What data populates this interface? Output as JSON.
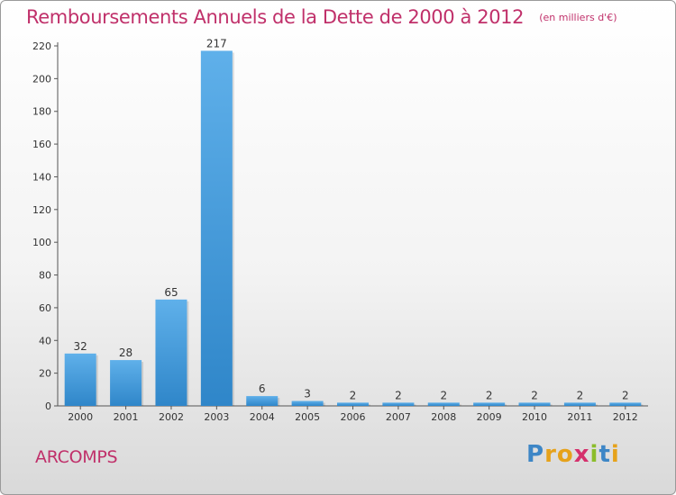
{
  "header": {
    "title": "Remboursements Annuels de la Dette de 2000 à 2012",
    "unit": "(en milliers d'€)"
  },
  "footer": {
    "place": "ARCOMPS",
    "logo_letters": [
      "P",
      "r",
      "o",
      "x",
      "i",
      "t",
      "i"
    ]
  },
  "chart_data": {
    "type": "bar",
    "title": "Remboursements Annuels de la Dette de 2000 à 2012",
    "xlabel": "",
    "ylabel": "",
    "categories": [
      "2000",
      "2001",
      "2002",
      "2003",
      "2004",
      "2005",
      "2006",
      "2007",
      "2008",
      "2009",
      "2010",
      "2011",
      "2012"
    ],
    "values": [
      32,
      28,
      65,
      217,
      6,
      3,
      2,
      2,
      2,
      2,
      2,
      2,
      2
    ],
    "ylim": [
      0,
      220
    ],
    "yticks": [
      0,
      20,
      40,
      60,
      80,
      100,
      120,
      140,
      160,
      180,
      200,
      220
    ],
    "grid": false,
    "legend": "none",
    "bar_color": "#2f86c9",
    "bar_color_light": "#5fb0ea"
  }
}
